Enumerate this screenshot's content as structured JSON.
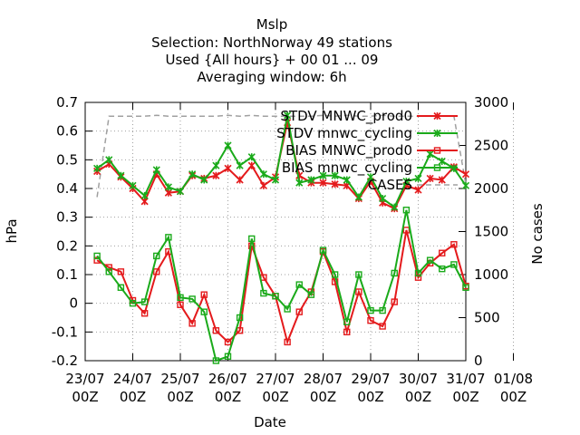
{
  "chart_data": {
    "type": "line",
    "title": [
      "Mslp",
      "Selection: NorthNorway     49 stations",
      "Used {All hours} + 00 01 ... 09",
      "Averaging window:  6h"
    ],
    "xlabel": "Date",
    "ylabel": "hPa",
    "y2label": "No cases",
    "ylim": [
      -0.2,
      0.7
    ],
    "y2lim": [
      0,
      3000
    ],
    "xlim": [
      0,
      8
    ],
    "yticks": [
      "-0.2",
      "-0.1",
      "0",
      "0.1",
      "0.2",
      "0.3",
      "0.4",
      "0.5",
      "0.6",
      "0.7"
    ],
    "y2ticks": [
      "0",
      "500",
      "1000",
      "1500",
      "2000",
      "2500",
      "3000"
    ],
    "xticks": [
      {
        "line1": "23/07",
        "line2": "00Z"
      },
      {
        "line1": "24/07",
        "line2": "00Z"
      },
      {
        "line1": "25/07",
        "line2": "00Z"
      },
      {
        "line1": "26/07",
        "line2": "00Z"
      },
      {
        "line1": "27/07",
        "line2": "00Z"
      },
      {
        "line1": "28/07",
        "line2": "00Z"
      },
      {
        "line1": "29/07",
        "line2": "00Z"
      },
      {
        "line1": "30/07",
        "line2": "00Z"
      },
      {
        "line1": "31/07",
        "line2": "00Z"
      },
      {
        "line1": "01/08",
        "line2": "00Z"
      }
    ],
    "grid": true,
    "legend_position": "top-right",
    "x": [
      0.25,
      0.5,
      0.75,
      1.0,
      1.25,
      1.5,
      1.75,
      2.0,
      2.25,
      2.5,
      2.75,
      3.0,
      3.25,
      3.5,
      3.75,
      4.0,
      4.25,
      4.5,
      4.75,
      5.0,
      5.25,
      5.5,
      5.75,
      6.0,
      6.25,
      6.5,
      6.75,
      7.0,
      7.25,
      7.5,
      7.75,
      8.0
    ],
    "series": [
      {
        "name": "STDV MNWC_prod0",
        "color": "#e41a1c",
        "marker": "x",
        "axis": "y",
        "values": [
          0.46,
          0.485,
          0.44,
          0.4,
          0.355,
          0.45,
          0.385,
          0.39,
          0.445,
          0.435,
          0.445,
          0.47,
          0.43,
          0.48,
          0.41,
          0.44,
          0.63,
          0.445,
          0.42,
          0.42,
          0.415,
          0.41,
          0.365,
          0.425,
          0.35,
          0.33,
          0.41,
          0.395,
          0.435,
          0.43,
          0.475,
          0.45
        ]
      },
      {
        "name": "STDV mnwc_cycling",
        "color": "#1aaa1a",
        "marker": "x",
        "axis": "y",
        "values": [
          0.47,
          0.5,
          0.445,
          0.41,
          0.375,
          0.465,
          0.405,
          0.39,
          0.45,
          0.43,
          0.48,
          0.55,
          0.48,
          0.51,
          0.45,
          0.43,
          0.655,
          0.42,
          0.43,
          0.445,
          0.445,
          0.43,
          0.37,
          0.44,
          0.365,
          0.335,
          0.425,
          0.435,
          0.52,
          0.495,
          0.47,
          0.41
        ]
      },
      {
        "name": "BIAS MNWC_prod0",
        "color": "#e41a1c",
        "marker": "square",
        "axis": "y",
        "values": [
          0.15,
          0.125,
          0.11,
          0.01,
          -0.035,
          0.11,
          0.18,
          -0.005,
          -0.07,
          0.03,
          -0.095,
          -0.135,
          -0.095,
          0.2,
          0.09,
          0.025,
          -0.135,
          -0.03,
          0.04,
          0.18,
          0.075,
          -0.1,
          0.04,
          -0.06,
          -0.08,
          0.005,
          0.255,
          0.09,
          0.14,
          0.175,
          0.205,
          0.06
        ]
      },
      {
        "name": "BIAS mnwc_cycling",
        "color": "#1aaa1a",
        "marker": "square",
        "axis": "y",
        "values": [
          0.165,
          0.11,
          0.055,
          0.0,
          0.005,
          0.165,
          0.23,
          0.02,
          0.015,
          -0.03,
          -0.2,
          -0.185,
          -0.05,
          0.225,
          0.035,
          0.025,
          -0.02,
          0.065,
          0.03,
          0.185,
          0.1,
          -0.065,
          0.1,
          -0.025,
          -0.025,
          0.105,
          0.325,
          0.105,
          0.15,
          0.12,
          0.135,
          0.055
        ]
      },
      {
        "name": "CASES",
        "color": "#a0a0a0",
        "marker": "none",
        "axis": "y2",
        "dashed": true,
        "values": [
          1900,
          2840,
          2840,
          2840,
          2840,
          2850,
          2840,
          2840,
          2840,
          2840,
          2840,
          2850,
          2840,
          2850,
          2840,
          2840,
          2840,
          2840,
          2840,
          2850,
          2840,
          2850,
          2840,
          2840,
          2850,
          2840,
          2840,
          2840,
          2840,
          2840,
          2840,
          2050
        ]
      }
    ]
  }
}
